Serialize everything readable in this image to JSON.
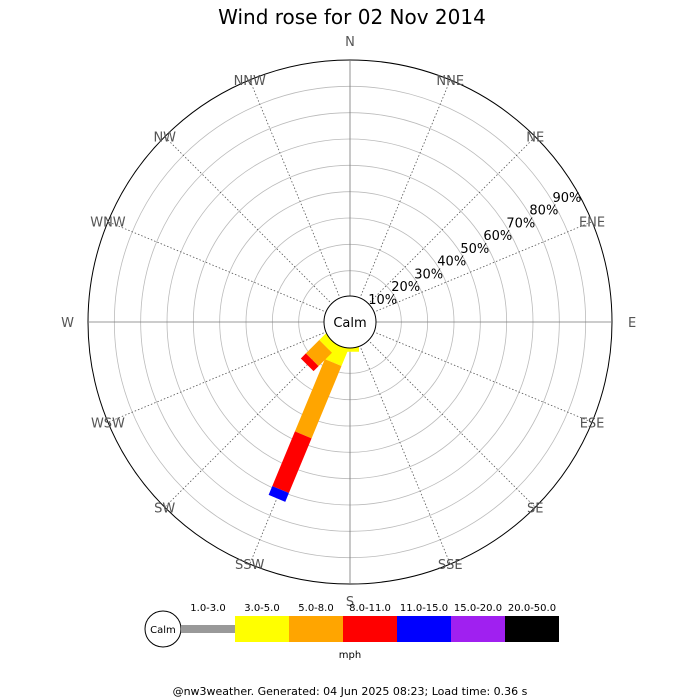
{
  "chart_data": {
    "type": "wind-rose",
    "title": "Wind rose for 02 Nov 2014",
    "directions": [
      "N",
      "NNE",
      "NE",
      "ENE",
      "E",
      "ESE",
      "SE",
      "SSE",
      "S",
      "SSW",
      "SW",
      "WSW",
      "W",
      "WNW",
      "NW",
      "NNW"
    ],
    "radial_ticks": [
      "10%",
      "20%",
      "30%",
      "40%",
      "50%",
      "60%",
      "70%",
      "80%",
      "90%"
    ],
    "radial_max_percent": 100,
    "calm_label": "Calm",
    "unit": "mph",
    "speed_bins": [
      {
        "label": "1.0-3.0",
        "color": "#999999"
      },
      {
        "label": "3.0-5.0",
        "color": "#ffff00"
      },
      {
        "label": "5.0-8.0",
        "color": "#ffa500"
      },
      {
        "label": "8.0-11.0",
        "color": "#ff0000"
      },
      {
        "label": "11.0-15.0",
        "color": "#0000ff"
      },
      {
        "label": "15.0-20.0",
        "color": "#a020f0"
      },
      {
        "label": "20.0-50.0",
        "color": "#000000"
      }
    ],
    "series": [
      {
        "direction": "S",
        "values": [
          0,
          2,
          0,
          0,
          0,
          0,
          0
        ]
      },
      {
        "direction": "SSW",
        "values": [
          0,
          8,
          33,
          25,
          4,
          0,
          0
        ]
      },
      {
        "direction": "SW",
        "values": [
          0,
          4,
          8,
          3,
          0,
          0,
          0
        ]
      }
    ]
  },
  "footer": "@nw3weather. Generated: 04 Jun 2025 08:23; Load time: 0.36 s"
}
